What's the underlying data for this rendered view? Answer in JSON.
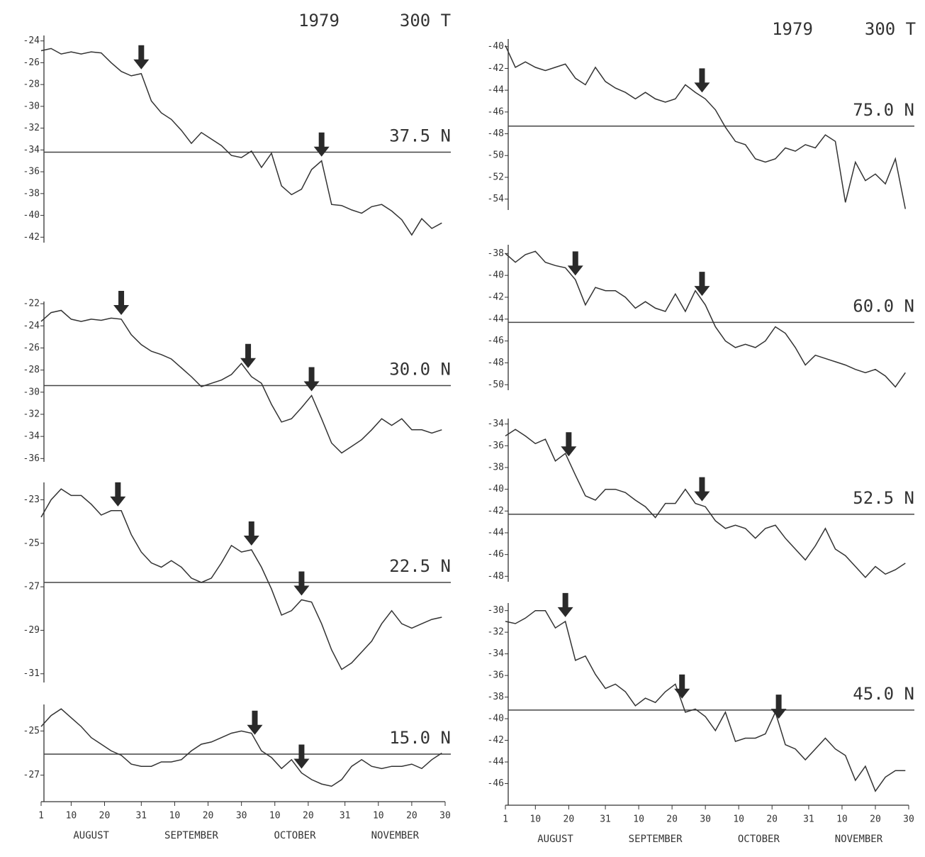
{
  "headers": [
    {
      "year": "1979",
      "level": "300 T"
    },
    {
      "year": "1979",
      "level": "300 T"
    }
  ],
  "chart_data": [
    {
      "type": "line",
      "title": "37.5 N",
      "color": "#333333",
      "xlim": [
        1,
        122
      ],
      "ylim": [
        -42.5,
        -23.5
      ],
      "yticks": [
        -24,
        -26,
        -28,
        -30,
        -32,
        -34,
        -36,
        -38,
        -40,
        -42
      ],
      "reference": -34.2,
      "arrows": [
        31,
        85
      ],
      "x": [
        1,
        4,
        7,
        10,
        13,
        16,
        19,
        22,
        25,
        28,
        31,
        34,
        37,
        40,
        43,
        46,
        49,
        52,
        55,
        58,
        61,
        64,
        67,
        70,
        73,
        76,
        79,
        82,
        85,
        88,
        91,
        94,
        97,
        100,
        103,
        106,
        109,
        112,
        115,
        118,
        121
      ],
      "values": [
        -24.9,
        -24.7,
        -25.2,
        -25.0,
        -25.2,
        -25.0,
        -25.1,
        -26.0,
        -26.8,
        -27.2,
        -27.0,
        -29.5,
        -30.6,
        -31.2,
        -32.2,
        -33.4,
        -32.4,
        -33.0,
        -33.6,
        -34.5,
        -34.7,
        -34.1,
        -35.6,
        -34.3,
        -37.3,
        -38.1,
        -37.6,
        -35.8,
        -35.0,
        -39.0,
        -39.1,
        -39.5,
        -39.8,
        -39.2,
        -39.0,
        -39.6,
        -40.4,
        -41.8,
        -40.3,
        -41.2,
        -40.7
      ]
    },
    {
      "type": "line",
      "title": "30.0 N",
      "color": "#333333",
      "xlim": [
        1,
        122
      ],
      "ylim": [
        -36.3,
        -21.8
      ],
      "yticks": [
        -22,
        -24,
        -26,
        -28,
        -30,
        -32,
        -34,
        -36
      ],
      "reference": -29.4,
      "arrows": [
        25,
        63,
        82
      ],
      "x": [
        1,
        4,
        7,
        10,
        13,
        16,
        19,
        22,
        25,
        28,
        31,
        34,
        37,
        40,
        43,
        46,
        49,
        52,
        55,
        58,
        61,
        64,
        67,
        70,
        73,
        76,
        79,
        82,
        85,
        88,
        91,
        94,
        97,
        100,
        103,
        106,
        109,
        112,
        115,
        118,
        121
      ],
      "values": [
        -23.6,
        -22.8,
        -22.6,
        -23.4,
        -23.6,
        -23.4,
        -23.5,
        -23.3,
        -23.4,
        -24.8,
        -25.7,
        -26.3,
        -26.6,
        -27.0,
        -27.8,
        -28.6,
        -29.5,
        -29.2,
        -28.9,
        -28.4,
        -27.4,
        -28.6,
        -29.2,
        -31.1,
        -32.7,
        -32.4,
        -31.4,
        -30.3,
        -32.4,
        -34.6,
        -35.5,
        -34.9,
        -34.3,
        -33.4,
        -32.4,
        -33.0,
        -32.4,
        -33.4,
        -33.4,
        -33.7,
        -33.4
      ]
    },
    {
      "type": "line",
      "title": "22.5 N",
      "color": "#333333",
      "xlim": [
        1,
        122
      ],
      "ylim": [
        -31.4,
        -22.2
      ],
      "yticks": [
        -23,
        -25,
        -27,
        -29,
        -31
      ],
      "reference": -26.8,
      "arrows": [
        24,
        64,
        79
      ],
      "x": [
        1,
        4,
        7,
        10,
        13,
        16,
        19,
        22,
        25,
        28,
        31,
        34,
        37,
        40,
        43,
        46,
        49,
        52,
        55,
        58,
        61,
        64,
        67,
        70,
        73,
        76,
        79,
        82,
        85,
        88,
        91,
        94,
        97,
        100,
        103,
        106,
        109,
        112,
        115,
        118,
        121
      ],
      "values": [
        -23.8,
        -23.0,
        -22.5,
        -22.8,
        -22.8,
        -23.2,
        -23.7,
        -23.5,
        -23.5,
        -24.6,
        -25.4,
        -25.9,
        -26.1,
        -25.8,
        -26.1,
        -26.6,
        -26.8,
        -26.6,
        -25.9,
        -25.1,
        -25.4,
        -25.3,
        -26.1,
        -27.1,
        -28.3,
        -28.1,
        -27.6,
        -27.7,
        -28.7,
        -29.9,
        -30.8,
        -30.5,
        -30.0,
        -29.5,
        -28.7,
        -28.1,
        -28.7,
        -28.9,
        -28.7,
        -28.5,
        -28.4
      ]
    },
    {
      "type": "line",
      "title": "15.0 N",
      "color": "#333333",
      "xlim": [
        1,
        122
      ],
      "ylim": [
        -28.2,
        -23.8
      ],
      "yticks": [
        -25,
        -27
      ],
      "reference": -26.05,
      "arrows": [
        65,
        79
      ],
      "xticks": [
        1,
        10,
        20,
        31,
        {
          "value": 41,
          "label": "10"
        },
        {
          "value": 51,
          "label": "20"
        },
        {
          "value": 61,
          "label": "30"
        },
        {
          "value": 71,
          "label": "10"
        },
        {
          "value": 81,
          "label": "20"
        },
        {
          "value": 92,
          "label": "31"
        },
        {
          "value": 102,
          "label": "10"
        },
        {
          "value": 112,
          "label": "20"
        },
        {
          "value": 122,
          "label": "30"
        }
      ],
      "month_labels": [
        "AUGUST",
        "SEPTEMBER",
        "OCTOBER",
        "NOVEMBER"
      ],
      "x": [
        1,
        4,
        7,
        10,
        13,
        16,
        19,
        22,
        25,
        28,
        31,
        34,
        37,
        40,
        43,
        46,
        49,
        52,
        55,
        58,
        61,
        64,
        67,
        70,
        73,
        76,
        79,
        82,
        85,
        88,
        91,
        94,
        97,
        100,
        103,
        106,
        109,
        112,
        115,
        118,
        121
      ],
      "values": [
        -24.8,
        -24.3,
        -24.0,
        -24.4,
        -24.8,
        -25.3,
        -25.6,
        -25.9,
        -26.1,
        -26.5,
        -26.6,
        -26.6,
        -26.4,
        -26.4,
        -26.3,
        -25.9,
        -25.6,
        -25.5,
        -25.3,
        -25.1,
        -25.0,
        -25.1,
        -25.9,
        -26.2,
        -26.7,
        -26.3,
        -26.9,
        -27.2,
        -27.4,
        -27.5,
        -27.2,
        -26.6,
        -26.3,
        -26.6,
        -26.7,
        -26.6,
        -26.6,
        -26.5,
        -26.7,
        -26.3,
        -26.0
      ]
    },
    {
      "type": "line",
      "title": "75.0 N",
      "color": "#333333",
      "xlim": [
        1,
        122
      ],
      "ylim": [
        -55.0,
        -39.3
      ],
      "yticks": [
        -40,
        -42,
        -44,
        -46,
        -48,
        -50,
        -52,
        -54
      ],
      "reference": -47.3,
      "arrows": [
        60
      ],
      "x": [
        1,
        4,
        7,
        10,
        13,
        16,
        19,
        22,
        25,
        28,
        31,
        34,
        37,
        40,
        43,
        46,
        49,
        52,
        55,
        58,
        61,
        64,
        67,
        70,
        73,
        76,
        79,
        82,
        85,
        88,
        91,
        94,
        97,
        100,
        103,
        106,
        109,
        112,
        115,
        118,
        121
      ],
      "values": [
        -39.9,
        -41.9,
        -41.4,
        -41.9,
        -42.2,
        -41.9,
        -41.6,
        -42.9,
        -43.5,
        -41.9,
        -43.2,
        -43.8,
        -44.2,
        -44.8,
        -44.2,
        -44.8,
        -45.1,
        -44.8,
        -43.5,
        -44.2,
        -44.8,
        -45.8,
        -47.4,
        -48.7,
        -49.0,
        -50.3,
        -50.6,
        -50.3,
        -49.3,
        -49.6,
        -49.0,
        -49.3,
        -48.1,
        -48.7,
        -54.3,
        -50.6,
        -52.3,
        -51.7,
        -52.6,
        -50.3,
        -54.9
      ]
    },
    {
      "type": "line",
      "title": "60.0 N",
      "color": "#333333",
      "xlim": [
        1,
        122
      ],
      "ylim": [
        -50.5,
        -37.2
      ],
      "yticks": [
        -38,
        -40,
        -42,
        -44,
        -46,
        -48,
        -50
      ],
      "reference": -44.3,
      "arrows": [
        22,
        60
      ],
      "x": [
        1,
        4,
        7,
        10,
        13,
        16,
        19,
        22,
        25,
        28,
        31,
        34,
        37,
        40,
        43,
        46,
        49,
        52,
        55,
        58,
        61,
        64,
        67,
        70,
        73,
        76,
        79,
        82,
        85,
        88,
        91,
        94,
        97,
        100,
        103,
        106,
        109,
        112,
        115,
        118,
        121
      ],
      "values": [
        -38.0,
        -38.8,
        -38.1,
        -37.8,
        -38.8,
        -39.1,
        -39.3,
        -40.4,
        -42.7,
        -41.1,
        -41.4,
        -41.4,
        -42.0,
        -43.0,
        -42.4,
        -43.0,
        -43.3,
        -41.7,
        -43.3,
        -41.4,
        -42.7,
        -44.7,
        -46.0,
        -46.6,
        -46.3,
        -46.6,
        -46.0,
        -44.7,
        -45.3,
        -46.6,
        -48.2,
        -47.3,
        -47.6,
        -47.9,
        -48.2,
        -48.6,
        -48.9,
        -48.6,
        -49.2,
        -50.2,
        -48.9
      ]
    },
    {
      "type": "line",
      "title": "52.5 N",
      "color": "#333333",
      "xlim": [
        1,
        122
      ],
      "ylim": [
        -48.5,
        -33.5
      ],
      "yticks": [
        -34,
        -36,
        -38,
        -40,
        -42,
        -44,
        -46,
        -48
      ],
      "reference": -42.3,
      "arrows": [
        20,
        60
      ],
      "x": [
        1,
        4,
        7,
        10,
        13,
        16,
        19,
        22,
        25,
        28,
        31,
        34,
        37,
        40,
        43,
        46,
        49,
        52,
        55,
        58,
        61,
        64,
        67,
        70,
        73,
        76,
        79,
        82,
        85,
        88,
        91,
        94,
        97,
        100,
        103,
        106,
        109,
        112,
        115,
        118,
        121
      ],
      "values": [
        -35.1,
        -34.5,
        -35.1,
        -35.8,
        -35.4,
        -37.4,
        -36.7,
        -38.7,
        -40.6,
        -41.0,
        -40.0,
        -40.0,
        -40.3,
        -41.0,
        -41.6,
        -42.6,
        -41.3,
        -41.3,
        -40.0,
        -41.3,
        -41.6,
        -42.9,
        -43.6,
        -43.3,
        -43.6,
        -44.5,
        -43.6,
        -43.3,
        -44.5,
        -45.5,
        -46.5,
        -45.2,
        -43.6,
        -45.5,
        -46.1,
        -47.1,
        -48.1,
        -47.1,
        -47.8,
        -47.4,
        -46.8
      ]
    },
    {
      "type": "line",
      "title": "45.0 N",
      "color": "#333333",
      "xlim": [
        1,
        122
      ],
      "ylim": [
        -48.0,
        -29.3
      ],
      "yticks": [
        -30,
        -32,
        -34,
        -36,
        -38,
        -40,
        -42,
        -44,
        -46
      ],
      "reference": -39.2,
      "arrows": [
        19,
        54,
        83
      ],
      "xticks": [
        1,
        10,
        20,
        31,
        {
          "value": 41,
          "label": "10"
        },
        {
          "value": 51,
          "label": "20"
        },
        {
          "value": 61,
          "label": "30"
        },
        {
          "value": 71,
          "label": "10"
        },
        {
          "value": 81,
          "label": "20"
        },
        {
          "value": 92,
          "label": "31"
        },
        {
          "value": 102,
          "label": "10"
        },
        {
          "value": 112,
          "label": "20"
        },
        {
          "value": 122,
          "label": "30"
        }
      ],
      "month_labels": [
        "AUGUST",
        "SEPTEMBER",
        "OCTOBER",
        "NOVEMBER"
      ],
      "x": [
        1,
        4,
        7,
        10,
        13,
        16,
        19,
        22,
        25,
        28,
        31,
        34,
        37,
        40,
        43,
        46,
        49,
        52,
        55,
        58,
        61,
        64,
        67,
        70,
        73,
        76,
        79,
        82,
        85,
        88,
        91,
        94,
        97,
        100,
        103,
        106,
        109,
        112,
        115,
        118,
        121
      ],
      "values": [
        -31.0,
        -31.2,
        -30.7,
        -30.0,
        -30.0,
        -31.6,
        -31.0,
        -34.6,
        -34.2,
        -35.9,
        -37.2,
        -36.8,
        -37.5,
        -38.8,
        -38.1,
        -38.5,
        -37.5,
        -36.8,
        -39.4,
        -39.1,
        -39.8,
        -41.1,
        -39.4,
        -42.1,
        -41.8,
        -41.8,
        -41.4,
        -39.4,
        -42.4,
        -42.8,
        -43.8,
        -42.8,
        -41.8,
        -42.8,
        -43.4,
        -45.7,
        -44.4,
        -46.7,
        -45.4,
        -44.8,
        -44.8
      ]
    }
  ]
}
